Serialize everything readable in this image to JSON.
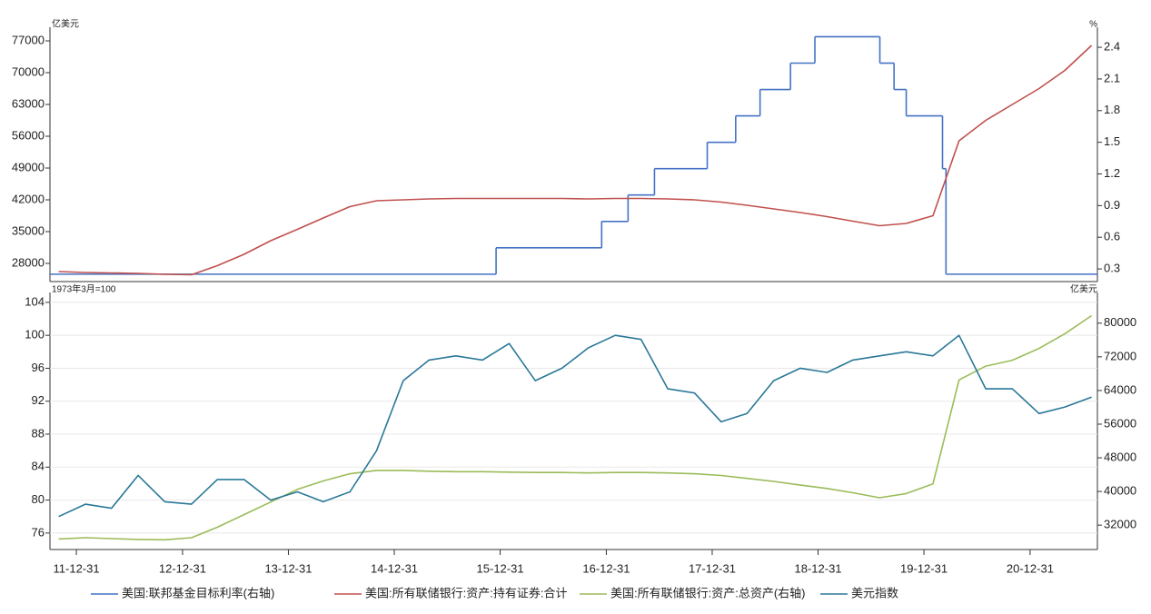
{
  "chart_data": [
    {
      "type": "line",
      "y_label": "亿美元",
      "y2_label": "%",
      "xlim": [
        "2011-10-01",
        "2021-08-20"
      ],
      "ylim": [
        24000,
        80000
      ],
      "yticks": [
        28000,
        35000,
        42000,
        49000,
        56000,
        63000,
        70000,
        77000
      ],
      "y2lim": [
        0.18,
        2.59
      ],
      "y2ticks": [
        0.3,
        0.6,
        0.9,
        1.2,
        1.5,
        1.8,
        2.1,
        2.4
      ],
      "series": [
        {
          "name": "美国:联邦基金目标利率(右轴)",
          "color": "#4472c4",
          "axis": "y2",
          "step": true,
          "x": [
            "2011-10-01",
            "2015-12-17",
            "2016-12-15",
            "2017-03-16",
            "2017-06-15",
            "2017-12-14",
            "2018-03-22",
            "2018-06-14",
            "2018-09-27",
            "2018-12-20",
            "2019-08-01",
            "2019-09-19",
            "2019-10-31",
            "2020-03-04",
            "2020-03-16"
          ],
          "values": [
            0.25,
            0.5,
            0.75,
            1,
            1.25,
            1.5,
            1.75,
            2,
            2.25,
            2.5,
            2.25,
            2,
            1.75,
            1.25,
            0.25
          ]
        },
        {
          "name": "美国:所有联储银行:资产:持有证券:合计",
          "color": "#c0504d",
          "x": [
            "2011-10-31",
            "2012-01-31",
            "2012-04-30",
            "2012-07-31",
            "2012-10-31",
            "2013-01-31",
            "2013-04-30",
            "2013-07-31",
            "2013-10-31",
            "2014-01-31",
            "2014-04-30",
            "2014-07-31",
            "2014-10-31",
            "2015-01-31",
            "2015-04-30",
            "2015-07-31",
            "2015-10-31",
            "2016-01-31",
            "2016-04-30",
            "2016-07-31",
            "2016-10-31",
            "2017-01-31",
            "2017-04-30",
            "2017-07-31",
            "2017-10-31",
            "2018-01-31",
            "2018-04-30",
            "2018-07-31",
            "2018-10-31",
            "2019-01-31",
            "2019-04-30",
            "2019-07-31",
            "2019-10-31",
            "2020-01-31",
            "2020-04-30",
            "2020-07-31",
            "2020-10-31",
            "2021-01-31",
            "2021-04-30",
            "2021-07-31"
          ],
          "values": [
            26200,
            26000,
            25900,
            25800,
            25600,
            25500,
            27500,
            30000,
            33000,
            35500,
            38000,
            40500,
            41800,
            42000,
            42200,
            42300,
            42300,
            42300,
            42300,
            42300,
            42200,
            42300,
            42300,
            42200,
            42000,
            41500,
            40800,
            40000,
            39200,
            38300,
            37300,
            36300,
            36800,
            38500,
            55000,
            59500,
            63000,
            66500,
            70500,
            76000
          ]
        }
      ]
    },
    {
      "type": "line",
      "y_label": "1973年3月=100",
      "y2_label": "亿美元",
      "grid": true,
      "xlim": [
        "2011-10-01",
        "2021-08-20"
      ],
      "xticks": [
        {
          "value": "2011-12-31",
          "label": "11-12-31"
        },
        {
          "value": "2012-12-31",
          "label": "12-12-31"
        },
        {
          "value": "2013-12-31",
          "label": "13-12-31"
        },
        {
          "value": "2014-12-31",
          "label": "14-12-31"
        },
        {
          "value": "2015-12-31",
          "label": "15-12-31"
        },
        {
          "value": "2016-12-31",
          "label": "16-12-31"
        },
        {
          "value": "2017-12-31",
          "label": "17-12-31"
        },
        {
          "value": "2018-12-31",
          "label": "18-12-31"
        },
        {
          "value": "2019-12-31",
          "label": "19-12-31"
        },
        {
          "value": "2020-12-31",
          "label": "20-12-31"
        }
      ],
      "ylim": [
        74,
        105.2
      ],
      "yticks": [
        76,
        80,
        84,
        88,
        92,
        96,
        100,
        104
      ],
      "y2lim": [
        26200,
        87300
      ],
      "y2ticks": [
        32000,
        40000,
        48000,
        56000,
        64000,
        72000,
        80000
      ],
      "series": [
        {
          "name": "美国:所有联储银行:资产:总资产(右轴)",
          "color": "#9bbb59",
          "axis": "y2",
          "x": [
            "2011-10-31",
            "2012-01-31",
            "2012-04-30",
            "2012-07-31",
            "2012-10-31",
            "2013-01-31",
            "2013-04-30",
            "2013-07-31",
            "2013-10-31",
            "2014-01-31",
            "2014-04-30",
            "2014-07-31",
            "2014-10-31",
            "2015-01-31",
            "2015-04-30",
            "2015-07-31",
            "2015-10-31",
            "2016-01-31",
            "2016-04-30",
            "2016-07-31",
            "2016-10-31",
            "2017-01-31",
            "2017-04-30",
            "2017-07-31",
            "2017-10-31",
            "2018-01-31",
            "2018-04-30",
            "2018-07-31",
            "2018-10-31",
            "2019-01-31",
            "2019-04-30",
            "2019-07-31",
            "2019-10-31",
            "2020-01-31",
            "2020-04-30",
            "2020-07-31",
            "2020-10-31",
            "2021-01-31",
            "2021-04-30",
            "2021-07-31"
          ],
          "values": [
            28700,
            29000,
            28800,
            28600,
            28500,
            29000,
            31500,
            34500,
            37500,
            40500,
            42500,
            44200,
            45000,
            45000,
            44800,
            44700,
            44700,
            44600,
            44500,
            44500,
            44400,
            44500,
            44500,
            44400,
            44200,
            43800,
            43100,
            42400,
            41500,
            40700,
            39700,
            38500,
            39500,
            41800,
            66500,
            69800,
            71200,
            74000,
            77500,
            81800
          ]
        },
        {
          "name": "美元指数",
          "color": "#2a7898",
          "x": [
            "2011-10-31",
            "2012-01-31",
            "2012-04-30",
            "2012-07-31",
            "2012-10-31",
            "2013-01-31",
            "2013-04-30",
            "2013-07-31",
            "2013-10-31",
            "2014-01-31",
            "2014-04-30",
            "2014-07-31",
            "2014-10-31",
            "2015-01-31",
            "2015-04-30",
            "2015-07-31",
            "2015-10-31",
            "2016-01-31",
            "2016-04-30",
            "2016-07-31",
            "2016-10-31",
            "2017-01-31",
            "2017-04-30",
            "2017-07-31",
            "2017-10-31",
            "2018-01-31",
            "2018-04-30",
            "2018-07-31",
            "2018-10-31",
            "2019-01-31",
            "2019-04-30",
            "2019-07-31",
            "2019-10-31",
            "2020-01-31",
            "2020-04-30",
            "2020-07-31",
            "2020-10-31",
            "2021-01-31",
            "2021-04-30",
            "2021-07-31"
          ],
          "values": [
            78,
            79.5,
            79,
            83,
            79.8,
            79.5,
            82.5,
            82.5,
            80,
            81,
            79.8,
            81,
            86,
            94.5,
            97,
            97.5,
            97,
            99,
            94.5,
            96,
            98.5,
            100,
            99.5,
            93.5,
            93,
            89.5,
            90.5,
            94.5,
            96,
            95.5,
            97,
            97.5,
            98,
            97.5,
            100,
            93.5,
            93.5,
            90.5,
            91.3,
            92.5
          ]
        }
      ]
    }
  ]
}
